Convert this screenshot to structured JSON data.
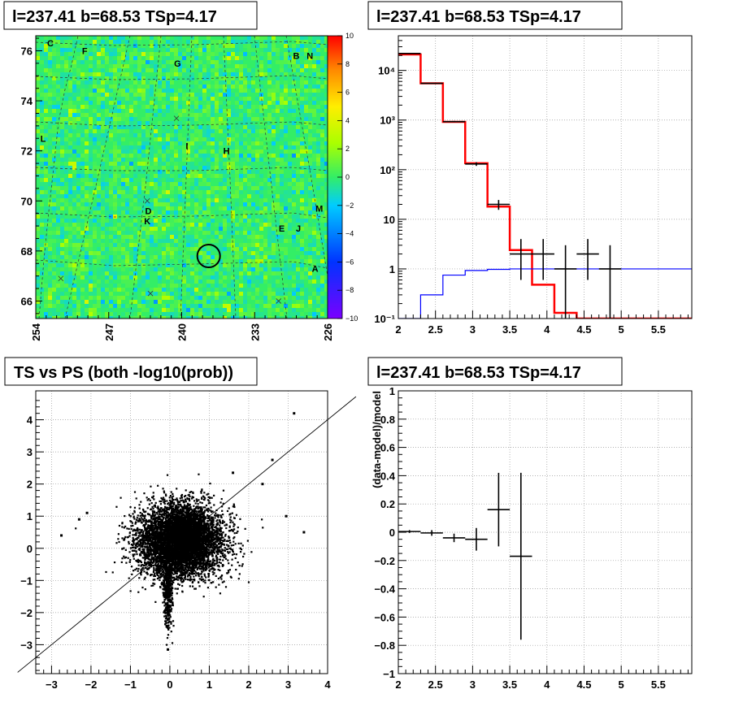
{
  "chart_data": [
    {
      "type": "heatmap",
      "title": "l=237.41 b=68.53 TSp=4.17",
      "x_ticks": [
        "254",
        "247",
        "240",
        "233",
        "226"
      ],
      "y_ticks": [
        "66",
        "68",
        "70",
        "72",
        "74",
        "76"
      ],
      "xlim": [
        254,
        226
      ],
      "ylim": [
        65.3,
        76.6
      ],
      "colorbar_ticks": [
        "10",
        "8",
        "6",
        "4",
        "2",
        "0",
        "−2",
        "−4",
        "−6",
        "−8",
        "−10"
      ],
      "colorbar_range": [
        -10,
        10
      ],
      "background_color": "#33ee66",
      "source_marker": {
        "l": 237.41,
        "b": 67.8
      },
      "region_labels": [
        {
          "text": "C",
          "l": 252.6,
          "b": 76.3
        },
        {
          "text": "F",
          "l": 249.3,
          "b": 76.0
        },
        {
          "text": "G",
          "l": 240.4,
          "b": 75.5
        },
        {
          "text": "B",
          "l": 229.0,
          "b": 75.8
        },
        {
          "text": "N",
          "l": 227.7,
          "b": 75.8
        },
        {
          "text": "L",
          "l": 253.3,
          "b": 72.5
        },
        {
          "text": "I",
          "l": 239.5,
          "b": 72.2
        },
        {
          "text": "H",
          "l": 235.7,
          "b": 72.0
        },
        {
          "text": "D",
          "l": 243.2,
          "b": 69.6
        },
        {
          "text": "K",
          "l": 243.3,
          "b": 69.2
        },
        {
          "text": "M",
          "l": 226.8,
          "b": 69.7
        },
        {
          "text": "E",
          "l": 230.4,
          "b": 68.9
        },
        {
          "text": "J",
          "l": 228.8,
          "b": 68.9
        },
        {
          "text": "A",
          "l": 227.2,
          "b": 67.3
        }
      ],
      "crosses": [
        {
          "l": 240.5,
          "b": 73.3
        },
        {
          "l": 243.3,
          "b": 70.0
        },
        {
          "l": 251.6,
          "b": 66.9
        },
        {
          "l": 243.0,
          "b": 66.3
        },
        {
          "l": 230.7,
          "b": 66.0
        }
      ]
    },
    {
      "type": "line",
      "title": "l=237.41 b=68.53 TSp=4.17",
      "x_ticks": [
        "2",
        "2.5",
        "3",
        "3.5",
        "4",
        "4.5",
        "5",
        "5.5"
      ],
      "y_ticks": [
        "10⁻¹",
        "1",
        "10",
        "10²",
        "10³",
        "10⁴"
      ],
      "xlim": [
        2,
        5.95
      ],
      "ylim": [
        0.1,
        50000
      ],
      "y_scale": "log",
      "grid": true,
      "bin_edges": [
        2.0,
        2.3,
        2.6,
        2.9,
        3.2,
        3.5,
        3.8,
        4.1,
        4.4,
        4.7,
        5.0,
        5.3,
        5.6,
        5.95
      ],
      "series": [
        {
          "color": "#ff0000",
          "values": [
            21000,
            5500,
            920,
            135,
            18,
            2.4,
            0.48,
            0.13,
            0.1,
            0.1,
            0.1,
            0.1,
            0.1
          ]
        },
        {
          "color": "#0000ff",
          "values": [
            0.1,
            0.3,
            0.75,
            0.93,
            0.98,
            1.0,
            1.0,
            1.0,
            1.0,
            1.0,
            1.0,
            1.0,
            1.0
          ]
        }
      ],
      "data_points": [
        {
          "x": 2.15,
          "y": 22000,
          "xerr": 0.15,
          "ylo": 21500,
          "yhi": 22500
        },
        {
          "x": 2.45,
          "y": 5500,
          "xerr": 0.15,
          "ylo": 5400,
          "yhi": 5600
        },
        {
          "x": 2.75,
          "y": 930,
          "xerr": 0.15,
          "ylo": 900,
          "yhi": 960
        },
        {
          "x": 3.05,
          "y": 130,
          "xerr": 0.15,
          "ylo": 119,
          "yhi": 141
        },
        {
          "x": 3.35,
          "y": 20,
          "xerr": 0.15,
          "ylo": 15.5,
          "yhi": 24.5
        },
        {
          "x": 3.65,
          "y": 2,
          "xerr": 0.15,
          "ylo": 0.6,
          "yhi": 4
        },
        {
          "x": 3.95,
          "y": 2,
          "xerr": 0.15,
          "ylo": 0.6,
          "yhi": 4
        },
        {
          "x": 4.25,
          "y": 1,
          "xerr": 0.15,
          "ylo": 0.1,
          "yhi": 3
        },
        {
          "x": 4.55,
          "y": 2,
          "xerr": 0.15,
          "ylo": 0.6,
          "yhi": 4
        },
        {
          "x": 4.85,
          "y": 1,
          "xerr": 0.15,
          "ylo": 0.1,
          "yhi": 3
        }
      ]
    },
    {
      "type": "scatter",
      "title": "TS vs PS (both -log10(prob))",
      "x_ticks": [
        "−3",
        "−2",
        "−1",
        "0",
        "1",
        "2",
        "3",
        "4"
      ],
      "y_ticks": [
        "−3",
        "−2",
        "−1",
        "0",
        "1",
        "2",
        "3",
        "4"
      ],
      "xlim": [
        -3.4,
        4.0
      ],
      "ylim": [
        -3.9,
        4.9
      ],
      "grid": true,
      "reference_line": {
        "slope": 1,
        "intercept": 0
      },
      "point_clusters": [
        {
          "x_mean": 0.25,
          "y_mean": 0.2,
          "sx": 0.55,
          "sy": 0.55,
          "n": 5200
        },
        {
          "x_mean": 0.4,
          "y_mean": 0.5,
          "sx": 0.3,
          "sy": 0.45,
          "n": 1200
        },
        {
          "x_mean": -0.05,
          "y_mean": -1.2,
          "sx": 0.06,
          "sy": 0.6,
          "n": 500
        }
      ],
      "highlight_points": [
        {
          "x": 3.15,
          "y": 4.2
        },
        {
          "x": 2.6,
          "y": 2.75
        },
        {
          "x": 3.4,
          "y": 0.5
        },
        {
          "x": 2.95,
          "y": 1.0
        },
        {
          "x": -2.1,
          "y": 1.1
        },
        {
          "x": -2.75,
          "y": 0.4
        },
        {
          "x": -2.3,
          "y": 0.9
        },
        {
          "x": -0.05,
          "y": -3.15
        },
        {
          "x": 2.35,
          "y": 2.0
        },
        {
          "x": 1.6,
          "y": 2.35
        }
      ]
    },
    {
      "type": "line",
      "title": "l=237.41 b=68.53 TSp=4.17",
      "ylabel": "(data-model)/model",
      "x_ticks": [
        "2",
        "2.5",
        "3",
        "3.5",
        "4",
        "4.5",
        "5",
        "5.5"
      ],
      "y_ticks": [
        "−1",
        "−0.8",
        "−0.6",
        "−0.4",
        "−0.2",
        "0",
        "0.2",
        "0.4",
        "0.6",
        "0.8",
        "1"
      ],
      "xlim": [
        2,
        5.95
      ],
      "ylim": [
        -1,
        1
      ],
      "grid": true,
      "data_points": [
        {
          "x": 2.15,
          "y": 0.005,
          "xerr": 0.15,
          "ylo": -0.005,
          "yhi": 0.015
        },
        {
          "x": 2.45,
          "y": -0.005,
          "xerr": 0.15,
          "ylo": -0.025,
          "yhi": 0.015
        },
        {
          "x": 2.75,
          "y": -0.04,
          "xerr": 0.15,
          "ylo": -0.07,
          "yhi": -0.01
        },
        {
          "x": 3.05,
          "y": -0.05,
          "xerr": 0.15,
          "ylo": -0.13,
          "yhi": 0.03
        },
        {
          "x": 3.35,
          "y": 0.16,
          "xerr": 0.15,
          "ylo": -0.1,
          "yhi": 0.42
        },
        {
          "x": 3.65,
          "y": -0.17,
          "xerr": 0.15,
          "ylo": -0.76,
          "yhi": 0.42
        }
      ]
    }
  ]
}
